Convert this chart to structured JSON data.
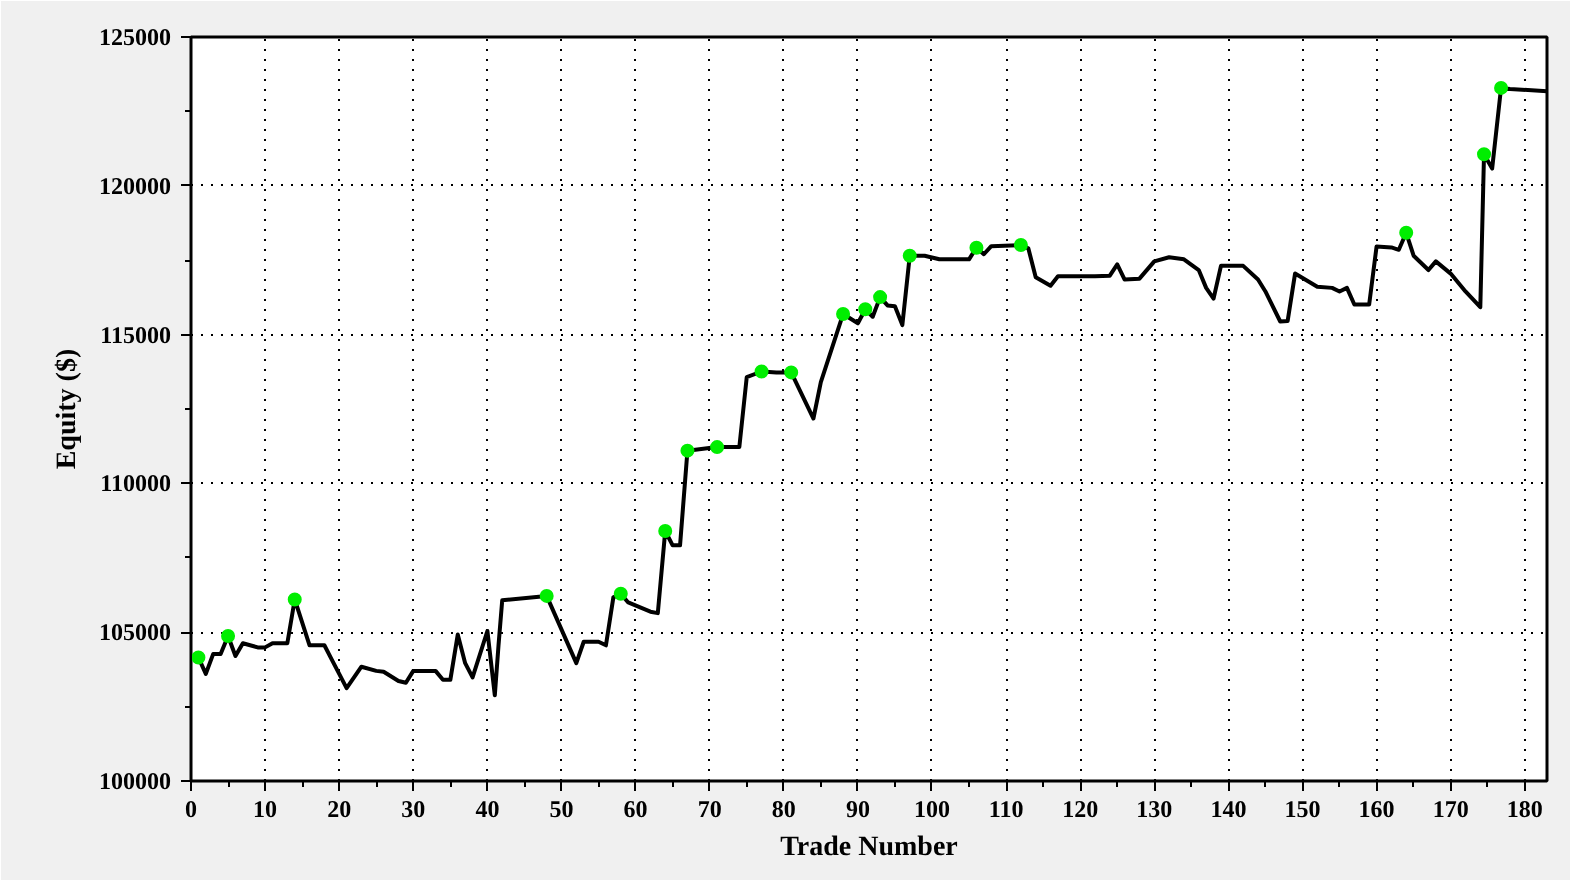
{
  "chart_data": {
    "type": "line",
    "xlabel": "Trade Number",
    "ylabel": "Equity ($)",
    "xlim": [
      0,
      183
    ],
    "ylim": [
      100000,
      125000
    ],
    "xticks": [
      0,
      10,
      20,
      30,
      40,
      50,
      60,
      70,
      80,
      90,
      100,
      110,
      120,
      130,
      140,
      150,
      160,
      170,
      180
    ],
    "yticks": [
      100000,
      105000,
      110000,
      115000,
      120000,
      125000
    ],
    "grid": true,
    "series": [
      {
        "color": "#000000",
        "marker": "none",
        "line_style": "solid",
        "x": [
          1,
          2,
          3,
          4,
          5,
          6,
          7,
          9,
          10,
          11,
          13,
          14,
          16,
          18,
          19,
          21,
          23,
          25,
          26,
          28,
          29,
          30,
          33,
          34,
          35,
          36,
          37,
          38,
          40,
          41,
          41.5,
          42,
          48,
          52,
          53,
          55,
          56,
          57,
          58,
          59,
          62,
          63,
          64,
          65,
          66,
          67,
          71,
          74,
          75,
          77,
          79,
          81,
          84,
          85,
          88,
          90,
          91,
          92,
          93,
          94,
          95,
          96,
          97,
          99,
          101,
          105,
          106,
          107,
          108,
          112,
          113,
          114,
          116,
          117,
          122,
          124,
          125,
          126,
          128,
          130,
          132,
          134,
          136,
          137,
          138,
          139,
          142,
          144,
          145,
          147,
          148,
          149,
          152,
          154,
          155,
          156,
          157,
          159,
          160,
          162,
          163,
          164,
          165,
          167,
          168,
          170,
          172,
          174,
          174.5,
          175.6,
          176.8,
          178,
          183
        ],
        "values": [
          104150,
          103600,
          104270,
          104270,
          104870,
          104200,
          104630,
          104490,
          104490,
          104630,
          104630,
          106100,
          104560,
          104560,
          104080,
          103120,
          103840,
          103700,
          103670,
          103360,
          103300,
          103700,
          103700,
          103400,
          103400,
          104920,
          103960,
          103480,
          105040,
          102880,
          104560,
          106070,
          106220,
          103960,
          104680,
          104680,
          104560,
          106170,
          106290,
          106000,
          105690,
          105640,
          108400,
          107920,
          107920,
          111100,
          111220,
          111220,
          113570,
          113760,
          113730,
          113730,
          112180,
          113400,
          115690,
          115380,
          115850,
          115600,
          116260,
          115980,
          115950,
          115320,
          117650,
          117650,
          117530,
          117530,
          117920,
          117700,
          117970,
          118010,
          117900,
          116930,
          116640,
          116960,
          116960,
          116980,
          117360,
          116850,
          116880,
          117460,
          117600,
          117530,
          117170,
          116570,
          116210,
          117310,
          117310,
          116850,
          116450,
          115440,
          115460,
          117050,
          116610,
          116570,
          116450,
          116570,
          116010,
          116010,
          117960,
          117930,
          117850,
          118420,
          117650,
          117170,
          117460,
          117050,
          116450,
          115920,
          121060,
          120580,
          123290,
          123250,
          123180
        ]
      },
      {
        "type": "scatter",
        "color": "#00ee00",
        "marker": "circle",
        "x": [
          1,
          5,
          14,
          48,
          58,
          64,
          67,
          71,
          77,
          81,
          88,
          91,
          93,
          97,
          106,
          112,
          164,
          174.5,
          176.8
        ],
        "values": [
          104150,
          104870,
          106100,
          106220,
          106290,
          108400,
          111100,
          111220,
          113760,
          113730,
          115690,
          115850,
          116260,
          117650,
          117920,
          118010,
          118420,
          121060,
          123290
        ]
      }
    ]
  }
}
